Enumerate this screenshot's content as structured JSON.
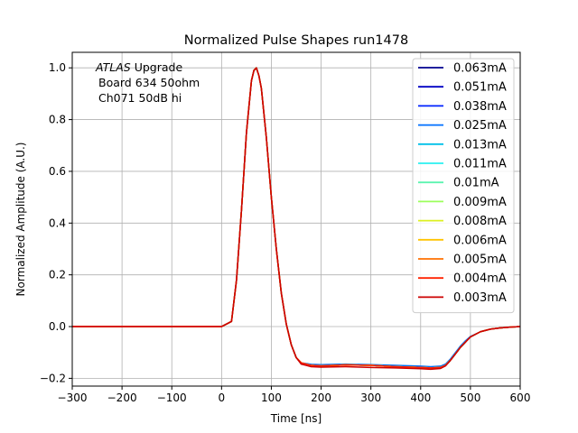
{
  "chart_data": {
    "type": "line",
    "title": "Normalized Pulse Shapes run1478",
    "xlabel": "Time [ns]",
    "ylabel": "Normalized Amplitude (A.U.)",
    "xlim": [
      -300,
      600
    ],
    "ylim": [
      -0.23,
      1.06
    ],
    "xticks": [
      -300,
      -200,
      -100,
      0,
      100,
      200,
      300,
      400,
      500,
      600
    ],
    "xtick_labels": [
      "−300",
      "−200",
      "−100",
      "0",
      "100",
      "200",
      "300",
      "400",
      "500",
      "600"
    ],
    "yticks": [
      -0.2,
      0.0,
      0.2,
      0.4,
      0.6,
      0.8,
      1.0
    ],
    "ytick_labels": [
      "−0.2",
      "0.0",
      "0.2",
      "0.4",
      "0.6",
      "0.8",
      "1.0"
    ],
    "grid": true,
    "legend_position": "top-right",
    "annotation": {
      "atlas": "ATLAS",
      "line1_rest": " Upgrade",
      "line2": "Board 634 50ohm",
      "line3": "Ch071 50dB hi"
    },
    "x": [
      -300,
      -200,
      -100,
      0,
      20,
      30,
      40,
      50,
      60,
      65,
      70,
      75,
      80,
      90,
      100,
      110,
      120,
      130,
      140,
      150,
      160,
      170,
      180,
      200,
      250,
      300,
      350,
      400,
      420,
      440,
      450,
      460,
      470,
      480,
      490,
      500,
      520,
      540,
      560,
      580,
      600
    ],
    "series": [
      {
        "name": "0.063mA",
        "color": "#00008f",
        "values": [
          0.0,
          0.0,
          0.0,
          0.0,
          0.02,
          0.18,
          0.45,
          0.75,
          0.95,
          0.99,
          1.0,
          0.97,
          0.92,
          0.73,
          0.5,
          0.3,
          0.13,
          0.01,
          -0.07,
          -0.12,
          -0.14,
          -0.145,
          -0.15,
          -0.152,
          -0.148,
          -0.15,
          -0.155,
          -0.158,
          -0.16,
          -0.158,
          -0.15,
          -0.13,
          -0.105,
          -0.08,
          -0.06,
          -0.04,
          -0.02,
          -0.01,
          -0.005,
          -0.002,
          0.0
        ]
      },
      {
        "name": "0.051mA",
        "color": "#0000c4",
        "values": [
          0.0,
          0.0,
          0.0,
          0.0,
          0.02,
          0.18,
          0.45,
          0.75,
          0.95,
          0.99,
          1.0,
          0.97,
          0.92,
          0.73,
          0.5,
          0.3,
          0.13,
          0.01,
          -0.07,
          -0.12,
          -0.14,
          -0.145,
          -0.15,
          -0.152,
          -0.148,
          -0.15,
          -0.155,
          -0.158,
          -0.16,
          -0.158,
          -0.15,
          -0.13,
          -0.105,
          -0.08,
          -0.06,
          -0.04,
          -0.02,
          -0.01,
          -0.005,
          -0.002,
          0.0
        ]
      },
      {
        "name": "0.038mA",
        "color": "#0022ff",
        "values": [
          0.0,
          0.0,
          0.0,
          0.0,
          0.02,
          0.18,
          0.45,
          0.75,
          0.95,
          0.99,
          1.0,
          0.97,
          0.92,
          0.73,
          0.5,
          0.3,
          0.13,
          0.01,
          -0.07,
          -0.12,
          -0.14,
          -0.145,
          -0.15,
          -0.152,
          -0.148,
          -0.15,
          -0.155,
          -0.158,
          -0.16,
          -0.158,
          -0.15,
          -0.13,
          -0.105,
          -0.08,
          -0.06,
          -0.04,
          -0.02,
          -0.01,
          -0.005,
          -0.002,
          0.0
        ]
      },
      {
        "name": "0.025mA",
        "color": "#0070ff",
        "values": [
          0.0,
          0.0,
          0.0,
          0.0,
          0.02,
          0.18,
          0.45,
          0.75,
          0.95,
          0.99,
          1.0,
          0.97,
          0.92,
          0.73,
          0.5,
          0.3,
          0.13,
          0.01,
          -0.07,
          -0.12,
          -0.14,
          -0.143,
          -0.146,
          -0.147,
          -0.145,
          -0.147,
          -0.15,
          -0.153,
          -0.155,
          -0.153,
          -0.145,
          -0.125,
          -0.1,
          -0.075,
          -0.055,
          -0.038,
          -0.02,
          -0.01,
          -0.005,
          -0.002,
          0.0
        ]
      },
      {
        "name": "0.013mA",
        "color": "#00c0e8",
        "values": [
          0.0,
          0.0,
          0.0,
          0.0,
          0.02,
          0.18,
          0.45,
          0.75,
          0.95,
          0.99,
          1.0,
          0.97,
          0.92,
          0.73,
          0.5,
          0.3,
          0.13,
          0.01,
          -0.07,
          -0.12,
          -0.14,
          -0.145,
          -0.15,
          -0.152,
          -0.148,
          -0.15,
          -0.155,
          -0.158,
          -0.16,
          -0.158,
          -0.15,
          -0.13,
          -0.105,
          -0.08,
          -0.06,
          -0.04,
          -0.02,
          -0.01,
          -0.005,
          -0.002,
          0.0
        ]
      },
      {
        "name": "0.011mA",
        "color": "#2af0f0",
        "values": [
          0.0,
          0.0,
          0.0,
          0.0,
          0.02,
          0.18,
          0.45,
          0.75,
          0.95,
          0.99,
          1.0,
          0.97,
          0.92,
          0.73,
          0.5,
          0.3,
          0.13,
          0.01,
          -0.07,
          -0.12,
          -0.14,
          -0.145,
          -0.15,
          -0.152,
          -0.148,
          -0.15,
          -0.155,
          -0.158,
          -0.16,
          -0.158,
          -0.15,
          -0.13,
          -0.105,
          -0.08,
          -0.06,
          -0.04,
          -0.02,
          -0.01,
          -0.005,
          -0.002,
          0.0
        ]
      },
      {
        "name": "0.01mA",
        "color": "#5cf4b0",
        "values": [
          0.0,
          0.0,
          0.0,
          0.0,
          0.02,
          0.18,
          0.45,
          0.75,
          0.95,
          0.99,
          1.0,
          0.97,
          0.92,
          0.73,
          0.5,
          0.3,
          0.13,
          0.01,
          -0.07,
          -0.12,
          -0.14,
          -0.145,
          -0.15,
          -0.152,
          -0.148,
          -0.15,
          -0.155,
          -0.158,
          -0.16,
          -0.158,
          -0.15,
          -0.13,
          -0.105,
          -0.08,
          -0.06,
          -0.04,
          -0.02,
          -0.01,
          -0.005,
          -0.002,
          0.0
        ]
      },
      {
        "name": "0.009mA",
        "color": "#9cff5c",
        "values": [
          0.0,
          0.0,
          0.0,
          0.0,
          0.02,
          0.18,
          0.45,
          0.75,
          0.95,
          0.99,
          1.0,
          0.97,
          0.92,
          0.73,
          0.5,
          0.3,
          0.13,
          0.01,
          -0.07,
          -0.12,
          -0.14,
          -0.145,
          -0.15,
          -0.152,
          -0.148,
          -0.15,
          -0.155,
          -0.158,
          -0.16,
          -0.158,
          -0.15,
          -0.13,
          -0.105,
          -0.08,
          -0.06,
          -0.04,
          -0.02,
          -0.01,
          -0.005,
          -0.002,
          0.0
        ]
      },
      {
        "name": "0.008mA",
        "color": "#dcf020",
        "values": [
          0.0,
          0.0,
          0.0,
          0.0,
          0.02,
          0.18,
          0.45,
          0.75,
          0.95,
          0.99,
          1.0,
          0.97,
          0.92,
          0.73,
          0.5,
          0.3,
          0.13,
          0.01,
          -0.07,
          -0.12,
          -0.14,
          -0.145,
          -0.15,
          -0.152,
          -0.148,
          -0.15,
          -0.155,
          -0.158,
          -0.16,
          -0.158,
          -0.15,
          -0.13,
          -0.105,
          -0.08,
          -0.06,
          -0.04,
          -0.02,
          -0.01,
          -0.005,
          -0.002,
          0.0
        ]
      },
      {
        "name": "0.006mA",
        "color": "#ffc400",
        "values": [
          0.0,
          0.0,
          0.0,
          0.0,
          0.02,
          0.18,
          0.45,
          0.75,
          0.95,
          0.99,
          1.0,
          0.97,
          0.92,
          0.73,
          0.5,
          0.3,
          0.13,
          0.01,
          -0.07,
          -0.12,
          -0.14,
          -0.145,
          -0.15,
          -0.152,
          -0.148,
          -0.15,
          -0.155,
          -0.158,
          -0.16,
          -0.158,
          -0.15,
          -0.13,
          -0.105,
          -0.08,
          -0.06,
          -0.04,
          -0.02,
          -0.01,
          -0.005,
          -0.002,
          0.0
        ]
      },
      {
        "name": "0.005mA",
        "color": "#ff7000",
        "values": [
          0.0,
          0.0,
          0.0,
          0.0,
          0.02,
          0.18,
          0.45,
          0.75,
          0.95,
          0.99,
          1.0,
          0.97,
          0.92,
          0.73,
          0.5,
          0.3,
          0.13,
          0.01,
          -0.07,
          -0.12,
          -0.14,
          -0.145,
          -0.15,
          -0.152,
          -0.148,
          -0.15,
          -0.155,
          -0.158,
          -0.16,
          -0.158,
          -0.15,
          -0.13,
          -0.105,
          -0.08,
          -0.06,
          -0.04,
          -0.02,
          -0.01,
          -0.005,
          -0.002,
          0.0
        ]
      },
      {
        "name": "0.004mA",
        "color": "#ff2200",
        "values": [
          0.0,
          0.0,
          0.0,
          0.0,
          0.02,
          0.18,
          0.45,
          0.75,
          0.95,
          0.99,
          1.0,
          0.97,
          0.92,
          0.73,
          0.5,
          0.3,
          0.13,
          0.01,
          -0.07,
          -0.12,
          -0.14,
          -0.145,
          -0.15,
          -0.152,
          -0.148,
          -0.15,
          -0.155,
          -0.158,
          -0.16,
          -0.158,
          -0.15,
          -0.13,
          -0.105,
          -0.08,
          -0.06,
          -0.04,
          -0.02,
          -0.01,
          -0.005,
          -0.002,
          0.0
        ]
      },
      {
        "name": "0.003mA",
        "color": "#cc0000",
        "values": [
          0.0,
          0.0,
          0.0,
          0.0,
          0.02,
          0.18,
          0.45,
          0.75,
          0.95,
          0.99,
          1.0,
          0.97,
          0.92,
          0.73,
          0.5,
          0.3,
          0.13,
          0.01,
          -0.07,
          -0.12,
          -0.145,
          -0.15,
          -0.155,
          -0.157,
          -0.155,
          -0.158,
          -0.16,
          -0.163,
          -0.165,
          -0.162,
          -0.152,
          -0.13,
          -0.105,
          -0.08,
          -0.06,
          -0.04,
          -0.02,
          -0.01,
          -0.005,
          -0.002,
          0.0
        ]
      }
    ]
  }
}
